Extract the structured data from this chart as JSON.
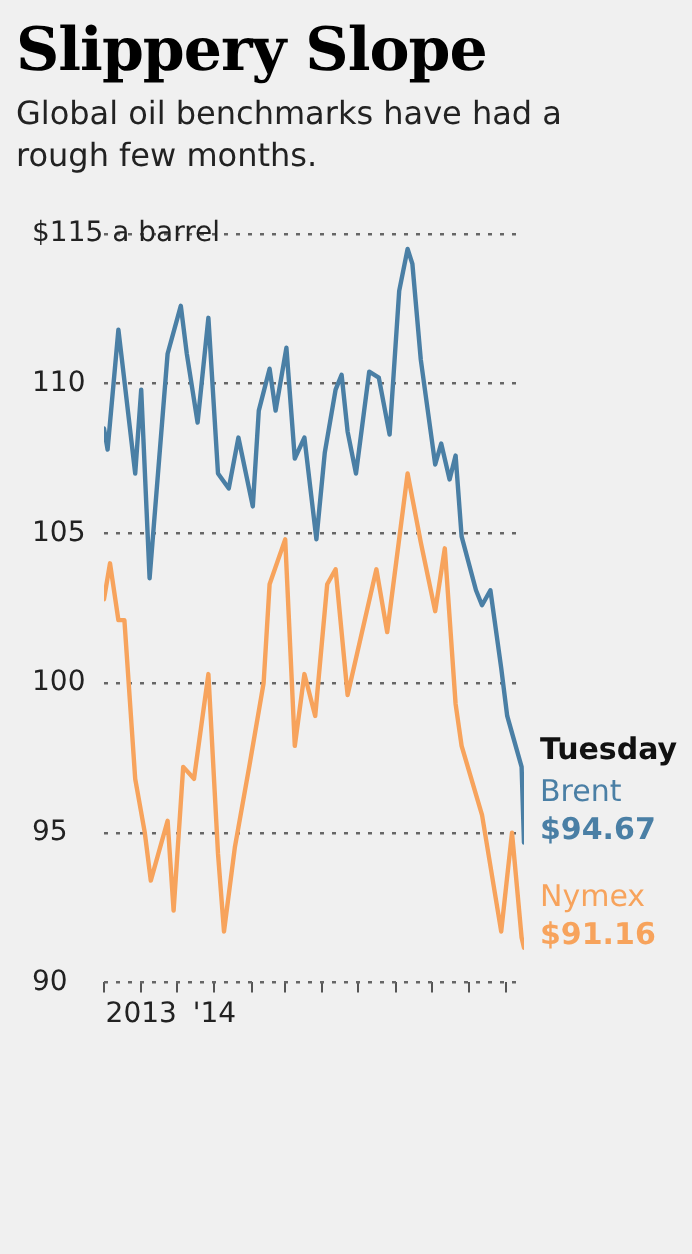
{
  "chart_data": {
    "type": "line",
    "title": "Slippery Slope",
    "subtitle": "Global oil benchmarks have had a rough few months.",
    "annotations": [
      "Tuesday"
    ],
    "xlim": [
      "2013-10-01",
      "2014-09-16"
    ],
    "xticks": [
      {
        "value": "2013-10-01",
        "label": null
      },
      {
        "value": "2013-11-01",
        "label": "2013"
      },
      {
        "value": "2013-12-01",
        "label": null
      },
      {
        "value": "2014-01-01",
        "label": "'14"
      },
      {
        "value": "2014-02-01",
        "label": null
      },
      {
        "value": "2014-03-01",
        "label": null
      },
      {
        "value": "2014-04-01",
        "label": null
      },
      {
        "value": "2014-05-01",
        "label": null
      },
      {
        "value": "2014-06-01",
        "label": null
      },
      {
        "value": "2014-07-01",
        "label": null
      },
      {
        "value": "2014-08-01",
        "label": null
      },
      {
        "value": "2014-09-01",
        "label": null
      }
    ],
    "ylim": [
      90,
      115
    ],
    "yticks": [
      90,
      95,
      100,
      105,
      110,
      {
        "value": 115,
        "label": "$115 a barrel"
      }
    ],
    "grid": "y",
    "legend": false,
    "marker": "none",
    "line_style": "solid",
    "series": [
      {
        "name": "Brent",
        "color": "#4a7fa5",
        "x": [
          "2013-10-01",
          "2013-10-04",
          "2013-10-13",
          "2013-10-18",
          "2013-10-27",
          "2013-11-01",
          "2013-11-08",
          "2013-11-16",
          "2013-11-23",
          "2013-12-04",
          "2013-12-09",
          "2013-12-18",
          "2013-12-27",
          "2014-01-04",
          "2014-01-13",
          "2014-01-21",
          "2014-02-02",
          "2014-02-07",
          "2014-02-16",
          "2014-02-21",
          "2014-03-02",
          "2014-03-09",
          "2014-03-17",
          "2014-03-27",
          "2014-04-03",
          "2014-04-12",
          "2014-04-17",
          "2014-04-22",
          "2014-04-29",
          "2014-05-10",
          "2014-05-18",
          "2014-05-27",
          "2014-06-04",
          "2014-06-11",
          "2014-06-15",
          "2014-06-22",
          "2014-07-04",
          "2014-07-09",
          "2014-07-16",
          "2014-07-21",
          "2014-07-26",
          "2014-08-07",
          "2014-08-12",
          "2014-08-19",
          "2014-08-28",
          "2014-09-02",
          "2014-09-14",
          "2014-09-16"
        ],
        "values": [
          108.5,
          107.8,
          111.8,
          110.1,
          107,
          109.8,
          103.5,
          107.5,
          111,
          112.6,
          111,
          108.7,
          112.2,
          107,
          106.5,
          108.2,
          105.9,
          109.1,
          110.5,
          109.1,
          111.2,
          107.5,
          108.2,
          104.8,
          107.7,
          109.8,
          110.3,
          108.4,
          107,
          110.4,
          110.2,
          108.3,
          113.1,
          114.5,
          114,
          110.8,
          107.3,
          108,
          106.8,
          107.6,
          104.9,
          103.1,
          102.6,
          103.1,
          100.5,
          98.9,
          97.2,
          94.67
        ],
        "value_labels": [
          null,
          null,
          null,
          null,
          null,
          null,
          null,
          null,
          null,
          null,
          null,
          null,
          null,
          null,
          null,
          null,
          null,
          null,
          null,
          null,
          null,
          null,
          null,
          null,
          null,
          null,
          null,
          null,
          null,
          null,
          null,
          null,
          null,
          null,
          null,
          null,
          null,
          null,
          null,
          null,
          null,
          null,
          null,
          null,
          null,
          null,
          null,
          "$94.67"
        ]
      },
      {
        "name": "Nymex",
        "color": "#f7a35c",
        "x": [
          "2013-10-01",
          "2013-10-06",
          "2013-10-13",
          "2013-10-18",
          "2013-10-27",
          "2013-11-04",
          "2013-11-09",
          "2013-11-23",
          "2013-11-28",
          "2013-12-06",
          "2013-12-15",
          "2013-12-27",
          "2014-01-04",
          "2014-01-09",
          "2014-01-18",
          "2014-01-30",
          "2014-02-11",
          "2014-02-16",
          "2014-03-01",
          "2014-03-09",
          "2014-03-17",
          "2014-03-26",
          "2014-04-05",
          "2014-04-12",
          "2014-04-22",
          "2014-05-16",
          "2014-05-25",
          "2014-06-11",
          "2014-06-22",
          "2014-07-04",
          "2014-07-12",
          "2014-07-21",
          "2014-07-26",
          "2014-08-12",
          "2014-08-28",
          "2014-09-06",
          "2014-09-14",
          "2014-09-16"
        ],
        "values": [
          102.8,
          104,
          102.1,
          102.1,
          96.8,
          95,
          93.4,
          95.4,
          92.4,
          97.2,
          96.8,
          100.3,
          94.3,
          91.7,
          94.5,
          97.2,
          100,
          103.3,
          104.8,
          97.9,
          100.3,
          98.9,
          103.3,
          103.8,
          99.6,
          103.8,
          101.7,
          107,
          104.7,
          102.4,
          104.5,
          99.3,
          97.9,
          95.6,
          91.7,
          95,
          91.5,
          91.16
        ],
        "value_labels": [
          null,
          null,
          null,
          null,
          null,
          null,
          null,
          null,
          null,
          null,
          null,
          null,
          null,
          null,
          null,
          null,
          null,
          null,
          null,
          null,
          null,
          null,
          null,
          null,
          null,
          null,
          null,
          null,
          null,
          null,
          null,
          null,
          null,
          null,
          null,
          null,
          null,
          "$91.16"
        ]
      }
    ]
  }
}
